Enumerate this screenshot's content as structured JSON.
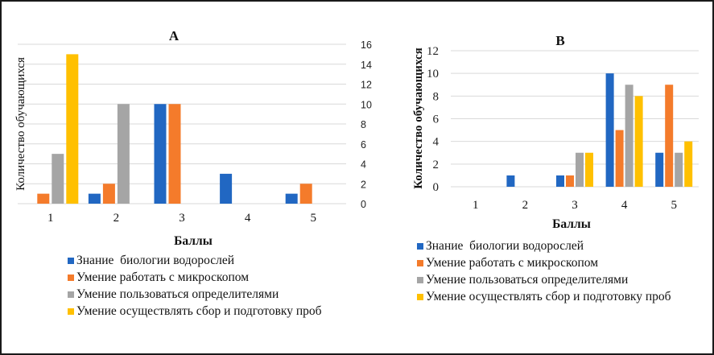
{
  "chart_data": [
    {
      "type": "bar",
      "title": "A",
      "xlabel": "Баллы",
      "ylabel": "Количество обучающихся",
      "categories": [
        "1",
        "2",
        "3",
        "4",
        "5"
      ],
      "ylim": [
        0,
        16
      ],
      "yticks": [
        0,
        2,
        4,
        6,
        8,
        10,
        12,
        14,
        16
      ],
      "yaxis_position": "right",
      "grid": true,
      "legend_position": "bottom",
      "series": [
        {
          "name": "Знание  биологии водорослей",
          "color": "#2167c2",
          "values": [
            0,
            1,
            10,
            3,
            1
          ]
        },
        {
          "name": "Умение работать с микроскопом",
          "color": "#f47b2b",
          "values": [
            1,
            2,
            10,
            0,
            2
          ]
        },
        {
          "name": "Умение пользоваться определителями",
          "color": "#a5a5a5",
          "values": [
            5,
            10,
            0,
            0,
            0
          ]
        },
        {
          "name": "Умение осуществлять сбор и подготовку проб",
          "color": "#ffc000",
          "values": [
            15,
            0,
            0,
            0,
            0
          ]
        }
      ]
    },
    {
      "type": "bar",
      "title": "B",
      "xlabel": "Баллы",
      "ylabel": "Количество обучающихся",
      "categories": [
        "1",
        "2",
        "3",
        "4",
        "5"
      ],
      "ylim": [
        0,
        12
      ],
      "yticks": [
        0,
        2,
        4,
        6,
        8,
        10,
        12
      ],
      "yaxis_position": "left",
      "grid": true,
      "legend_position": "bottom",
      "series": [
        {
          "name": "Знание  биологии водорослей",
          "color": "#2167c2",
          "values": [
            0,
            1,
            1,
            10,
            3
          ]
        },
        {
          "name": "Умение работать с микроскопом",
          "color": "#f47b2b",
          "values": [
            0,
            0,
            1,
            5,
            9
          ]
        },
        {
          "name": "Умение пользоваться определителями",
          "color": "#a5a5a5",
          "values": [
            0,
            0,
            3,
            9,
            3
          ]
        },
        {
          "name": "Умение осуществлять сбор и подготовку проб",
          "color": "#ffc000",
          "values": [
            0,
            0,
            3,
            8,
            4
          ]
        }
      ]
    }
  ]
}
